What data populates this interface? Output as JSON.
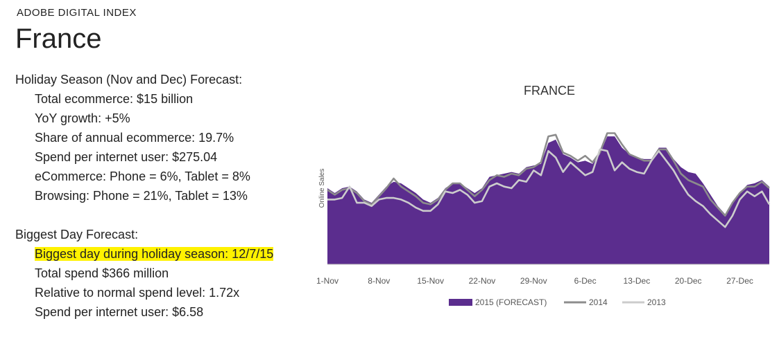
{
  "header": {
    "brand": "ADOBE DIGITAL INDEX",
    "country": "France"
  },
  "forecast": {
    "heading": "Holiday Season (Nov and Dec) Forecast:",
    "items": [
      "Total ecommerce: $15 billion",
      "YoY growth: +5%",
      "Share of annual ecommerce: 19.7%",
      "Spend per internet user: $275.04",
      "eCommerce: Phone = 6%, Tablet = 8%",
      "Browsing: Phone = 21%, Tablet = 13%"
    ]
  },
  "biggest": {
    "heading": "Biggest Day Forecast:",
    "items": [
      "Biggest day during holiday season: 12/7/15",
      "Total spend $366 million",
      "Relative to normal spend level: 1.72x",
      "Spend per internet user: $6.58"
    ],
    "highlight_index": 0,
    "highlight_color": "#fff200"
  },
  "chart_data": {
    "type": "area",
    "title": "FRANCE",
    "ylabel": "Online Sales",
    "xlabel": "",
    "x_ticks": [
      "1-Nov",
      "8-Nov",
      "15-Nov",
      "22-Nov",
      "29-Nov",
      "6-Dec",
      "13-Dec",
      "20-Dec",
      "27-Dec"
    ],
    "x_tick_days": [
      1,
      8,
      15,
      22,
      29,
      36,
      43,
      50,
      57
    ],
    "y_range": [
      0,
      100
    ],
    "legend_position": "bottom",
    "colors": {
      "2015 (FORECAST)": "#5b2d8e",
      "2014": "#8c8c8c",
      "2013": "#cccccc"
    },
    "series": [
      {
        "name": "2015 (FORECAST)",
        "style": "area",
        "days": [
          1,
          2,
          3,
          4,
          5,
          6,
          7,
          8,
          9,
          10,
          11,
          12,
          13,
          14,
          15,
          16,
          17,
          18,
          19,
          20,
          21,
          22,
          23,
          24,
          25,
          26,
          27,
          28,
          29,
          30,
          31,
          32,
          33,
          34,
          35,
          36,
          37,
          38,
          39,
          40,
          41,
          42,
          43,
          44,
          45,
          46,
          47,
          48,
          49,
          50,
          51,
          52,
          53,
          54,
          55,
          56,
          57,
          58,
          59,
          60,
          61
        ],
        "values": [
          47,
          44,
          47,
          48,
          45,
          40,
          38,
          43,
          48,
          51,
          50,
          47,
          44,
          40,
          38,
          41,
          47,
          50,
          50,
          47,
          44,
          47,
          54,
          55,
          56,
          57,
          56,
          60,
          61,
          62,
          75,
          77,
          68,
          66,
          63,
          64,
          62,
          68,
          79,
          79,
          72,
          68,
          66,
          65,
          65,
          72,
          72,
          65,
          60,
          57,
          56,
          50,
          43,
          36,
          31,
          38,
          44,
          49,
          50,
          52,
          48
        ]
      },
      {
        "name": "2014",
        "style": "line",
        "days": [
          1,
          2,
          3,
          4,
          5,
          6,
          7,
          8,
          9,
          10,
          11,
          12,
          13,
          14,
          15,
          16,
          17,
          18,
          19,
          20,
          21,
          22,
          23,
          24,
          25,
          26,
          27,
          28,
          29,
          30,
          31,
          32,
          33,
          34,
          35,
          36,
          37,
          38,
          39,
          40,
          41,
          42,
          43,
          44,
          45,
          46,
          47,
          48,
          49,
          50,
          51,
          52,
          53,
          54,
          55,
          56,
          57,
          58,
          59,
          60,
          61
        ],
        "values": [
          46,
          43,
          46,
          47,
          44,
          39,
          37,
          42,
          47,
          53,
          48,
          45,
          42,
          38,
          37,
          40,
          46,
          50,
          50,
          46,
          42,
          46,
          52,
          55,
          54,
          56,
          55,
          59,
          60,
          63,
          79,
          80,
          69,
          67,
          64,
          67,
          63,
          69,
          81,
          81,
          74,
          68,
          66,
          64,
          64,
          71,
          71,
          64,
          56,
          52,
          50,
          48,
          40,
          35,
          30,
          38,
          44,
          48,
          48,
          51,
          47
        ]
      },
      {
        "name": "2013",
        "style": "line",
        "days": [
          1,
          2,
          3,
          4,
          5,
          6,
          7,
          8,
          9,
          10,
          11,
          12,
          13,
          14,
          15,
          16,
          17,
          18,
          19,
          20,
          21,
          22,
          23,
          24,
          25,
          26,
          27,
          28,
          29,
          30,
          31,
          32,
          33,
          34,
          35,
          36,
          37,
          38,
          39,
          40,
          41,
          42,
          43,
          44,
          45,
          46,
          47,
          48,
          49,
          50,
          51,
          52,
          53,
          54,
          55,
          56,
          57,
          58,
          59,
          60,
          61
        ],
        "values": [
          40,
          40,
          41,
          48,
          38,
          38,
          36,
          40,
          41,
          41,
          40,
          38,
          35,
          33,
          33,
          37,
          45,
          44,
          46,
          43,
          38,
          39,
          48,
          50,
          48,
          47,
          52,
          51,
          58,
          55,
          70,
          66,
          57,
          63,
          59,
          55,
          57,
          71,
          70,
          58,
          63,
          59,
          57,
          56,
          64,
          70,
          64,
          58,
          50,
          43,
          39,
          36,
          31,
          27,
          23,
          30,
          40,
          45,
          42,
          45,
          37
        ]
      }
    ]
  }
}
